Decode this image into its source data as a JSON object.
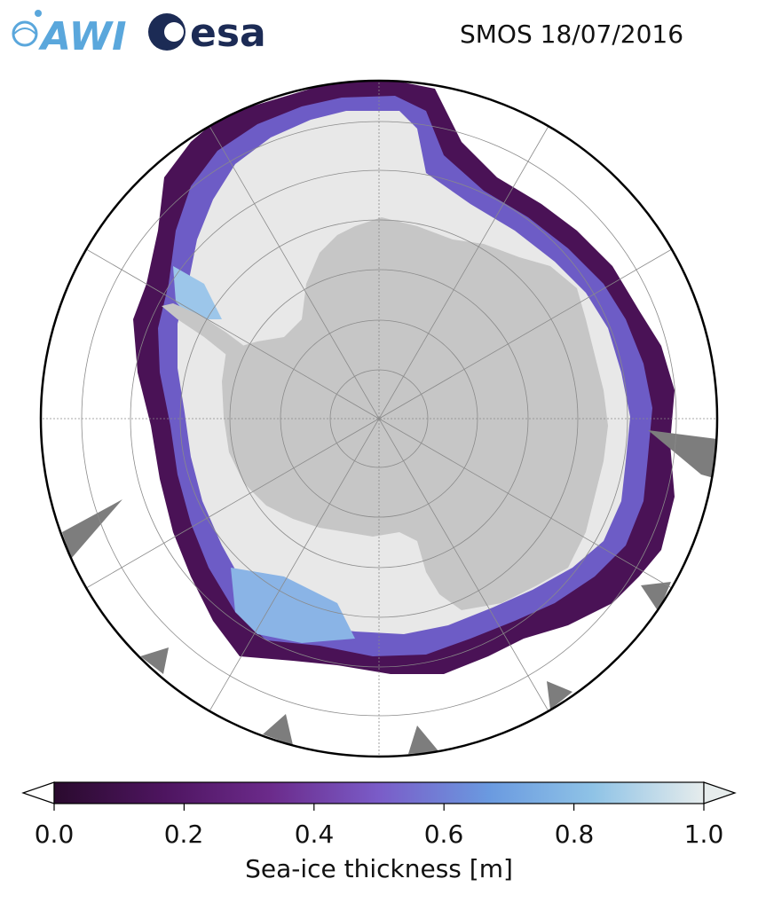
{
  "title": "SMOS 18/07/2016",
  "logos": {
    "left_text": "AWI",
    "right_text": "esa"
  },
  "colorbar": {
    "label": "Sea-ice thickness [m]",
    "ticks": [
      "0.0",
      "0.2",
      "0.4",
      "0.6",
      "0.8",
      "1.0"
    ],
    "range": [
      0.0,
      1.0
    ],
    "extend": "both",
    "colormap": [
      "#2a0a2e",
      "#4e1560",
      "#6b2a8a",
      "#7a5cc8",
      "#6a9ae0",
      "#8fc3e6",
      "#e6ecec"
    ]
  },
  "map": {
    "projection": "south-polar-stereographic",
    "colors": {
      "land": "#c6c6c6",
      "ocean": "#ffffff",
      "sea_ice_thick": "#e8e8e8",
      "no_data": "#7d7d7d",
      "grid": "#8a8a8a"
    }
  }
}
